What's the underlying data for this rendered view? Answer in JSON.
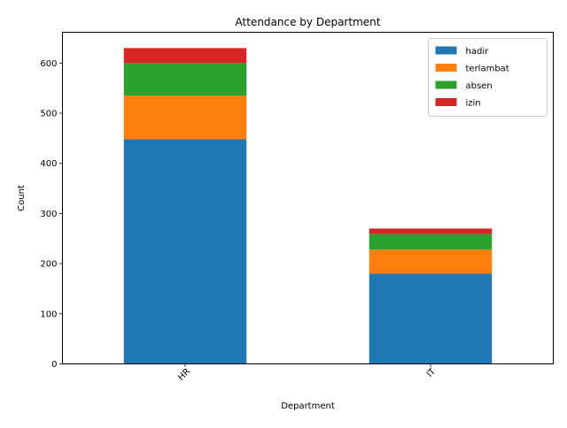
{
  "chart_data": {
    "type": "bar",
    "stacked": true,
    "title": "Attendance by Department",
    "xlabel": "Department",
    "ylabel": "Count",
    "categories": [
      "HR",
      "IT"
    ],
    "series": [
      {
        "name": "hadir",
        "values": [
          448,
          180
        ],
        "color": "#1f77b4"
      },
      {
        "name": "terlambat",
        "values": [
          87,
          48
        ],
        "color": "#ff7f0e"
      },
      {
        "name": "absen",
        "values": [
          65,
          31
        ],
        "color": "#2ca02c"
      },
      {
        "name": "izin",
        "values": [
          30,
          11
        ],
        "color": "#d62728"
      }
    ],
    "ylim": [
      0,
      661.5
    ],
    "yticks": [
      0,
      100,
      200,
      300,
      400,
      500,
      600
    ],
    "xtick_rotation": 45,
    "grid": false,
    "legend": "top-right"
  }
}
